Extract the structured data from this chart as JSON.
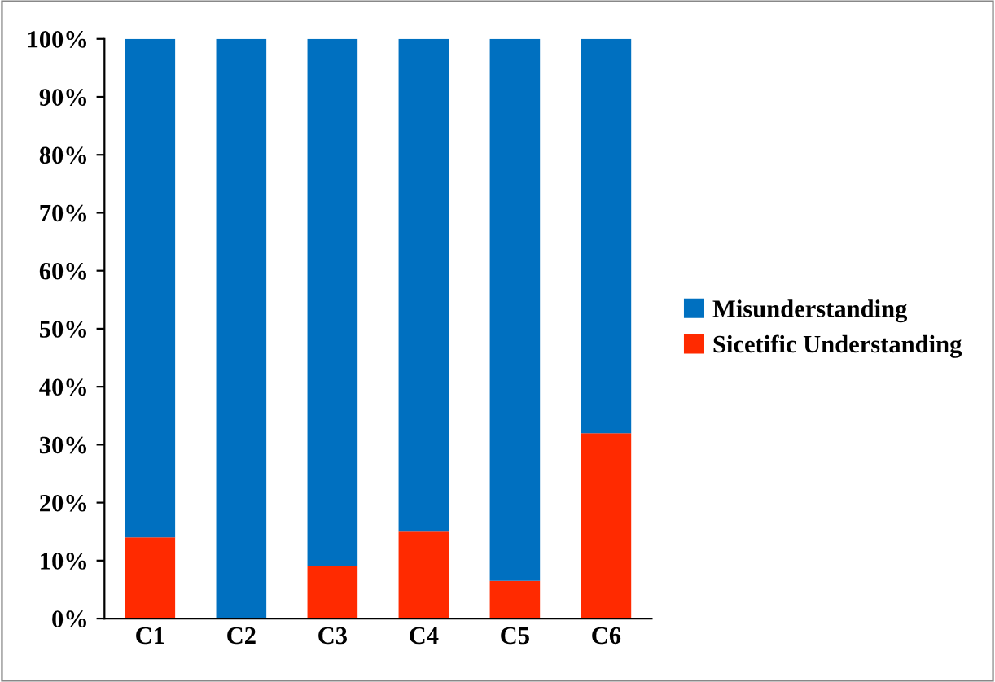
{
  "chart_data": {
    "type": "bar",
    "stacked": true,
    "categories": [
      "C1",
      "C2",
      "C3",
      "C4",
      "C5",
      "C6"
    ],
    "series": [
      {
        "name": "Sicetific Understanding",
        "color": "#ff2a00",
        "values": [
          14,
          0,
          9,
          15,
          6.5,
          32
        ]
      },
      {
        "name": "Misunderstanding",
        "color": "#0070c0",
        "values": [
          86,
          100,
          91,
          85,
          93.5,
          68
        ]
      }
    ],
    "ylim": [
      0,
      100
    ],
    "yticks": [
      {
        "value": 0,
        "label": "0%"
      },
      {
        "value": 10,
        "label": "10%"
      },
      {
        "value": 20,
        "label": "20%"
      },
      {
        "value": 30,
        "label": "30%"
      },
      {
        "value": 40,
        "label": "40%"
      },
      {
        "value": 50,
        "label": "50%"
      },
      {
        "value": 60,
        "label": "60%"
      },
      {
        "value": 70,
        "label": "70%"
      },
      {
        "value": 80,
        "label": "80%"
      },
      {
        "value": 90,
        "label": "90%"
      },
      {
        "value": 100,
        "label": "100%"
      }
    ],
    "grid": false,
    "legend": "right"
  }
}
